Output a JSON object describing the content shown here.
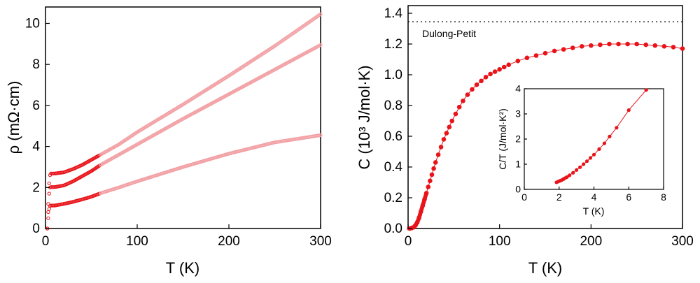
{
  "colors": {
    "marker": "#e8141a",
    "marker_light": "#f2a0a4",
    "axis": "#000000"
  },
  "chart_data": [
    {
      "type": "scatter",
      "name": "resistivity",
      "xlabel": "T (K)",
      "ylabel": "ρ (mΩ·cm)",
      "xlim": [
        0,
        300
      ],
      "ylim": [
        0,
        10.8
      ],
      "xticks": [
        0,
        100,
        200,
        300
      ],
      "yticks": [
        0,
        2,
        4,
        6,
        8,
        10
      ],
      "series": [
        {
          "name": "sample-top",
          "x": [
            2,
            3,
            4,
            5,
            6,
            8,
            10,
            20,
            30,
            40,
            50,
            60,
            80,
            100,
            150,
            200,
            250,
            300
          ],
          "y": [
            0,
            1.2,
            2.2,
            2.6,
            2.68,
            2.68,
            2.68,
            2.74,
            2.9,
            3.1,
            3.35,
            3.6,
            4.1,
            4.7,
            6.05,
            7.45,
            8.9,
            10.45
          ]
        },
        {
          "name": "sample-middle",
          "x": [
            2,
            3,
            4,
            5,
            6,
            8,
            10,
            20,
            30,
            40,
            50,
            60,
            80,
            100,
            150,
            200,
            250,
            300
          ],
          "y": [
            0,
            0.8,
            1.7,
            2.0,
            2.02,
            2.02,
            2.02,
            2.1,
            2.3,
            2.55,
            2.8,
            3.1,
            3.6,
            4.1,
            5.35,
            6.55,
            7.75,
            8.95
          ]
        },
        {
          "name": "sample-bottom",
          "x": [
            2,
            3,
            4,
            5,
            6,
            8,
            10,
            20,
            30,
            40,
            50,
            60,
            80,
            100,
            150,
            200,
            250,
            300
          ],
          "y": [
            0,
            0.5,
            0.95,
            1.1,
            1.12,
            1.12,
            1.12,
            1.2,
            1.3,
            1.42,
            1.55,
            1.72,
            2.0,
            2.3,
            3.0,
            3.65,
            4.2,
            4.55
          ]
        }
      ]
    },
    {
      "type": "scatter",
      "name": "heat-capacity",
      "xlabel": "T (K)",
      "ylabel": "C (10³ J/mol·K)",
      "xlim": [
        0,
        300
      ],
      "ylim": [
        0,
        1.45
      ],
      "xticks": [
        0,
        100,
        200,
        300
      ],
      "yticks": [
        0.0,
        0.2,
        0.4,
        0.6,
        0.8,
        1.0,
        1.2,
        1.4
      ],
      "dulong_petit": {
        "label": "Dulong-Petit",
        "value": 1.345
      },
      "x": [
        2,
        4,
        6,
        8,
        10,
        12,
        14,
        16,
        18,
        20,
        22,
        24,
        26,
        28,
        30,
        33,
        36,
        39,
        42,
        45,
        48,
        52,
        56,
        60,
        65,
        70,
        75,
        80,
        85,
        90,
        95,
        100,
        105,
        110,
        120,
        130,
        140,
        150,
        160,
        170,
        180,
        190,
        200,
        210,
        220,
        230,
        240,
        250,
        260,
        270,
        280,
        290,
        300
      ],
      "y": [
        0.0,
        0.003,
        0.008,
        0.02,
        0.04,
        0.07,
        0.11,
        0.15,
        0.19,
        0.23,
        0.27,
        0.31,
        0.35,
        0.39,
        0.43,
        0.48,
        0.53,
        0.58,
        0.62,
        0.66,
        0.7,
        0.745,
        0.79,
        0.83,
        0.87,
        0.905,
        0.935,
        0.96,
        0.985,
        1.005,
        1.02,
        1.035,
        1.05,
        1.065,
        1.09,
        1.11,
        1.125,
        1.14,
        1.155,
        1.165,
        1.175,
        1.185,
        1.19,
        1.195,
        1.2,
        1.2,
        1.2,
        1.2,
        1.195,
        1.19,
        1.185,
        1.18,
        1.17
      ]
    },
    {
      "type": "scatter",
      "name": "inset-c-over-t",
      "xlabel": "T (K)",
      "ylabel": "C/T (J/mol·K²)",
      "xlim": [
        0,
        8
      ],
      "ylim": [
        0,
        4
      ],
      "xticks": [
        0,
        2,
        4,
        6,
        8
      ],
      "yticks": [
        0,
        1,
        2,
        3,
        4
      ],
      "x": [
        1.85,
        1.95,
        2.05,
        2.15,
        2.25,
        2.35,
        2.45,
        2.6,
        2.8,
        3.0,
        3.2,
        3.4,
        3.6,
        3.8,
        4.0,
        4.3,
        4.6,
        4.9,
        5.3,
        6.0,
        7.0
      ],
      "y": [
        0.28,
        0.31,
        0.34,
        0.37,
        0.41,
        0.45,
        0.49,
        0.56,
        0.66,
        0.77,
        0.88,
        1.0,
        1.12,
        1.25,
        1.38,
        1.6,
        1.83,
        2.1,
        2.45,
        3.15,
        3.95
      ]
    }
  ]
}
